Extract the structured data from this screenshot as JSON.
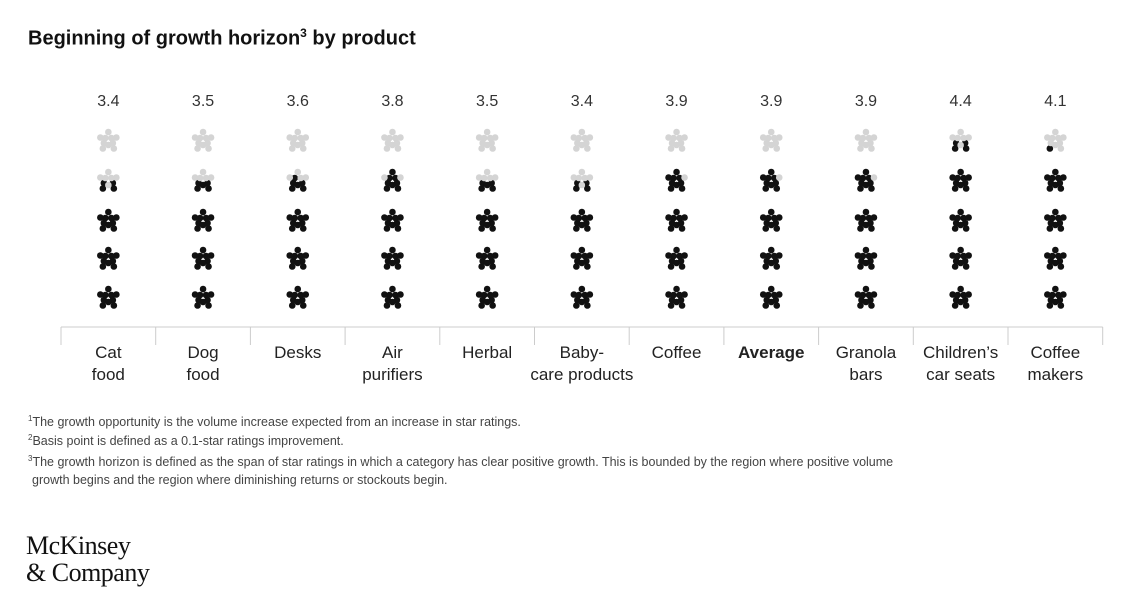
{
  "title": "Beginning of growth horizon",
  "title_sup": "3",
  "title_suffix": " by product",
  "chart_data": {
    "type": "pictogram",
    "title": "Beginning of growth horizon3 by product",
    "max_stars": 5,
    "categories": [
      [
        "Cat",
        "food"
      ],
      [
        "Dog",
        "food"
      ],
      [
        "Desks"
      ],
      [
        "Air",
        "purifiers"
      ],
      [
        "Herbal"
      ],
      [
        "Baby-",
        "care products"
      ],
      [
        "Coffee"
      ],
      [
        "Average"
      ],
      [
        "Granola",
        "bars"
      ],
      [
        "Children’s",
        "car seats"
      ],
      [
        "Coffee",
        "makers"
      ]
    ],
    "values": [
      3.4,
      3.5,
      3.6,
      3.8,
      3.5,
      3.4,
      3.9,
      3.9,
      3.9,
      4.4,
      4.1
    ],
    "value_labels": [
      "3.4",
      "3.5",
      "3.6",
      "3.8",
      "3.5",
      "3.4",
      "3.9",
      "3.9",
      "3.9",
      "4.4",
      "4.1"
    ],
    "bold_category": "Average",
    "colors": {
      "filled": "#111111",
      "empty": "#d4d4d4"
    }
  },
  "footnotes": [
    {
      "sup": "1",
      "text": "The growth opportunity is the volume increase expected from an increase in star ratings."
    },
    {
      "sup": "2",
      "text": "Basis point is defined as a 0.1-star ratings improvement."
    },
    {
      "sup": "3",
      "text": "The growth horizon is defined as the span of star ratings in which a category has clear positive growth. This is bounded by the region where positive volume"
    },
    {
      "sup": "",
      "text": "growth begins and the region where diminishing returns or stockouts begin."
    }
  ],
  "logo": {
    "line1": "McKinsey",
    "line2": "& Company"
  }
}
